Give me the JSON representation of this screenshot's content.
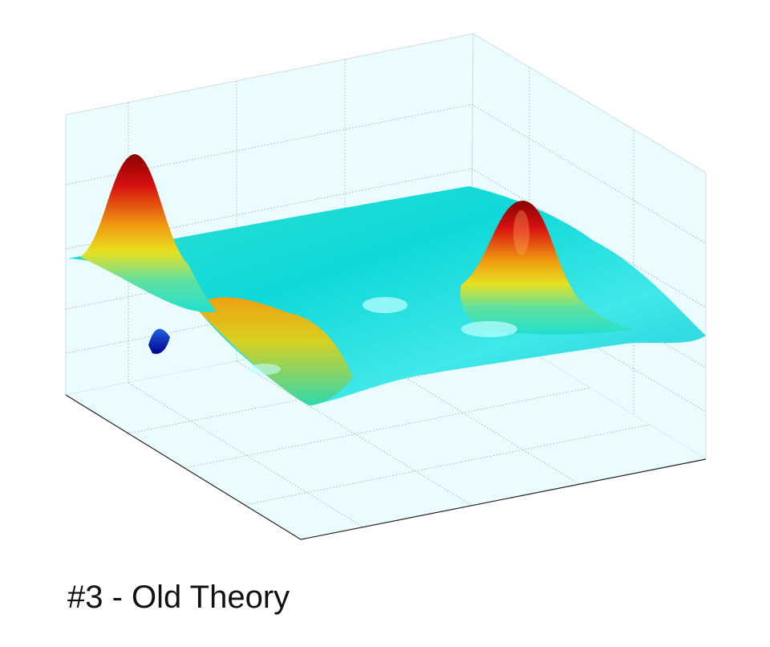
{
  "caption": "#3 - Old Theory"
}
